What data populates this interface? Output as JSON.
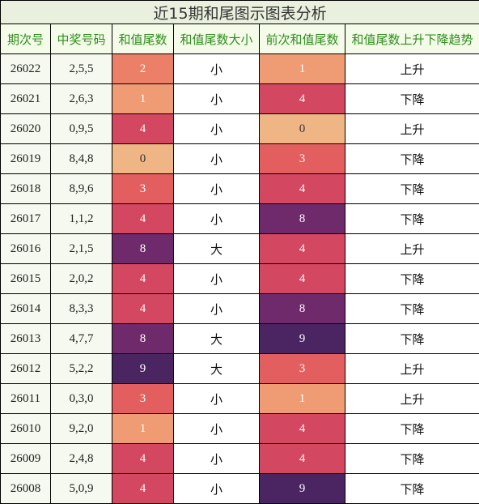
{
  "title": "近15期和尾图示图表分析",
  "headers": [
    "期次号",
    "中奖号码",
    "和值尾数",
    "和值尾数大小",
    "前次和值尾数",
    "和值尾数上升下降趋势"
  ],
  "heat_colors": {
    "0": "#f0b584",
    "1": "#ef9b74",
    "2": "#eb7f68",
    "3": "#e35f5f",
    "4": "#d44761",
    "8": "#6e2a6b",
    "9": "#4b2462"
  },
  "rows": [
    {
      "period": "26022",
      "numbers": "2,5,5",
      "tail": "2",
      "size": "小",
      "prev_tail": "1",
      "trend": "上升"
    },
    {
      "period": "26021",
      "numbers": "2,6,3",
      "tail": "1",
      "size": "小",
      "prev_tail": "4",
      "trend": "下降"
    },
    {
      "period": "26020",
      "numbers": "0,9,5",
      "tail": "4",
      "size": "小",
      "prev_tail": "0",
      "trend": "上升"
    },
    {
      "period": "26019",
      "numbers": "8,4,8",
      "tail": "0",
      "size": "小",
      "prev_tail": "3",
      "trend": "下降"
    },
    {
      "period": "26018",
      "numbers": "8,9,6",
      "tail": "3",
      "size": "小",
      "prev_tail": "4",
      "trend": "下降"
    },
    {
      "period": "26017",
      "numbers": "1,1,2",
      "tail": "4",
      "size": "小",
      "prev_tail": "8",
      "trend": "下降"
    },
    {
      "period": "26016",
      "numbers": "2,1,5",
      "tail": "8",
      "size": "大",
      "prev_tail": "4",
      "trend": "上升"
    },
    {
      "period": "26015",
      "numbers": "2,0,2",
      "tail": "4",
      "size": "小",
      "prev_tail": "4",
      "trend": "下降"
    },
    {
      "period": "26014",
      "numbers": "8,3,3",
      "tail": "4",
      "size": "小",
      "prev_tail": "8",
      "trend": "下降"
    },
    {
      "period": "26013",
      "numbers": "4,7,7",
      "tail": "8",
      "size": "大",
      "prev_tail": "9",
      "trend": "下降"
    },
    {
      "period": "26012",
      "numbers": "5,2,2",
      "tail": "9",
      "size": "大",
      "prev_tail": "3",
      "trend": "上升"
    },
    {
      "period": "26011",
      "numbers": "0,3,0",
      "tail": "3",
      "size": "小",
      "prev_tail": "1",
      "trend": "上升"
    },
    {
      "period": "26010",
      "numbers": "9,2,0",
      "tail": "1",
      "size": "小",
      "prev_tail": "4",
      "trend": "下降"
    },
    {
      "period": "26009",
      "numbers": "2,4,8",
      "tail": "4",
      "size": "小",
      "prev_tail": "4",
      "trend": "下降"
    },
    {
      "period": "26008",
      "numbers": "5,0,9",
      "tail": "4",
      "size": "小",
      "prev_tail": "9",
      "trend": "下降"
    }
  ]
}
